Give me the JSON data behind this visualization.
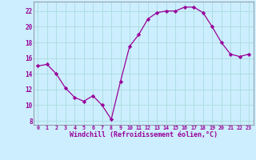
{
  "x": [
    0,
    1,
    2,
    3,
    4,
    5,
    6,
    7,
    8,
    9,
    10,
    11,
    12,
    13,
    14,
    15,
    16,
    17,
    18,
    19,
    20,
    21,
    22,
    23
  ],
  "y": [
    15,
    15.2,
    14,
    12.2,
    11,
    10.5,
    11.2,
    10,
    8.2,
    13,
    17.5,
    19,
    21,
    21.8,
    22,
    22,
    22.5,
    22.5,
    21.8,
    20,
    18,
    16.5,
    16.2,
    16.5
  ],
  "line_color": "#990099",
  "marker": "D",
  "marker_size": 2.2,
  "bg_color": "#cceeff",
  "grid_color": "#aadddd",
  "xlabel": "Windchill (Refroidissement éolien,°C)",
  "xlabel_color": "#990099",
  "tick_color": "#990099",
  "ylim": [
    7.5,
    23.2
  ],
  "xlim": [
    -0.5,
    23.5
  ],
  "yticks": [
    8,
    10,
    12,
    14,
    16,
    18,
    20,
    22
  ],
  "xticks": [
    0,
    1,
    2,
    3,
    4,
    5,
    6,
    7,
    8,
    9,
    10,
    11,
    12,
    13,
    14,
    15,
    16,
    17,
    18,
    19,
    20,
    21,
    22,
    23
  ],
  "spine_color": "#888899"
}
